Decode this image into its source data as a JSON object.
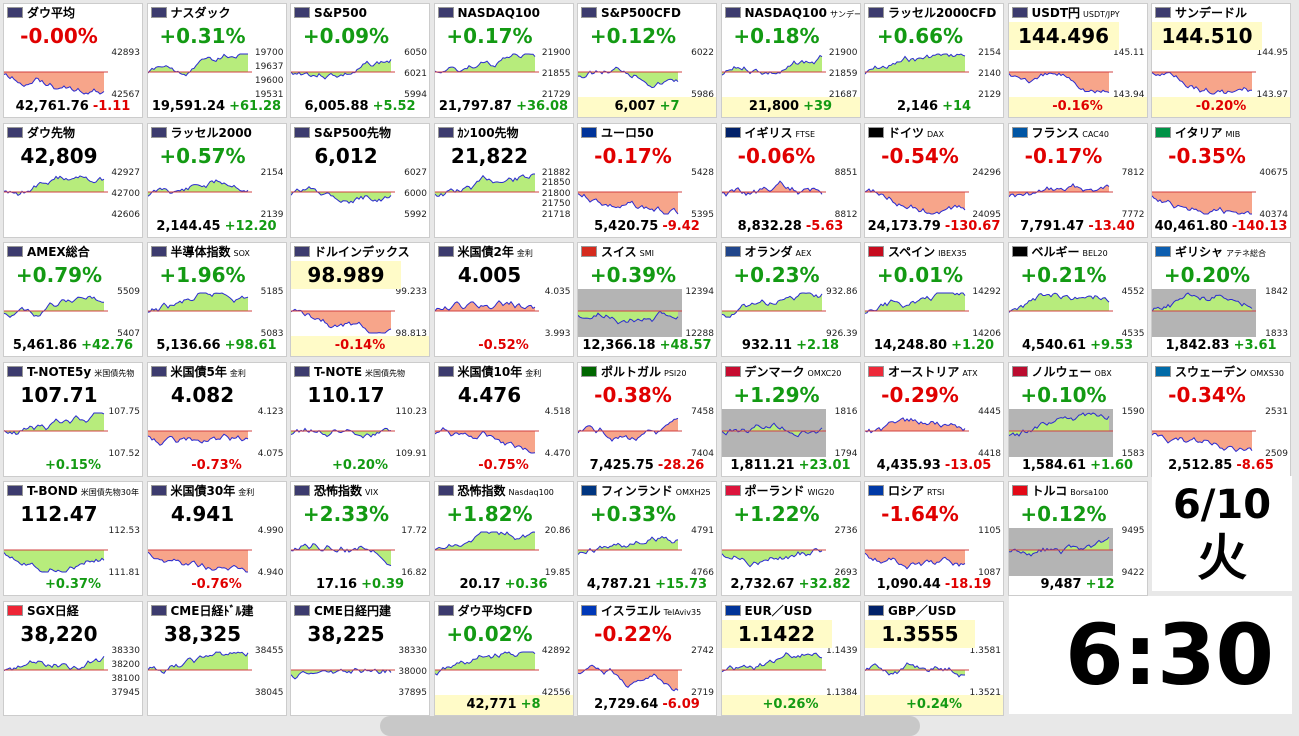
{
  "tiles": [
    {
      "name": "ダウ平均",
      "pct": "-0.00%",
      "price": "42,761.76",
      "change": "-1.11",
      "labels": [
        "42893",
        "42567"
      ]
    },
    {
      "name": "ナスダック",
      "pct": "+0.31%",
      "price": "19,591.24",
      "change": "+61.28",
      "labels": [
        "19700",
        "19637",
        "19600",
        "19531"
      ]
    },
    {
      "name": "S&P500",
      "pct": "+0.09%",
      "price": "6,005.88",
      "change": "+5.52",
      "labels": [
        "6050",
        "6021",
        "5994"
      ]
    },
    {
      "name": "NASDAQ100",
      "pct": "+0.17%",
      "price": "21,797.87",
      "change": "+36.08",
      "labels": [
        "21900",
        "21855",
        "21729"
      ]
    },
    {
      "name": "S&P500CFD",
      "pct": "+0.12%",
      "price": "6,007",
      "change": "+7",
      "labels": [
        "6022",
        "5986"
      ],
      "highlight": "#fffbc8"
    },
    {
      "name": "NASDAQ100",
      "sub": "サンデー",
      "pct": "+0.18%",
      "price": "21,800",
      "change": "+39",
      "labels": [
        "21900",
        "21859",
        "21687"
      ],
      "highlight": "#fffbc8"
    },
    {
      "name": "ラッセル2000CFD",
      "pct": "+0.66%",
      "price": "2,146",
      "change": "+14",
      "labels": [
        "2154",
        "2140",
        "2129"
      ]
    },
    {
      "name": "USDT円",
      "sub": "USDT/JPY",
      "price": "144.496",
      "pct": "-0.16%",
      "labels": [
        "145.11",
        "143.94"
      ],
      "highlight": "#fffbc8"
    },
    {
      "name": "サンデードル",
      "price": "144.510",
      "pct": "-0.20%",
      "labels": [
        "144.95",
        "143.97"
      ],
      "highlight": "#fffbc8"
    },
    {
      "name": "ダウ先物",
      "price": "42,809",
      "labels": [
        "42927",
        "42700",
        "42606"
      ]
    },
    {
      "name": "ラッセル2000",
      "pct": "+0.57%",
      "price": "2,144.45",
      "change": "+12.20",
      "labels": [
        "2154",
        "2139"
      ]
    },
    {
      "name": "S&P500先物",
      "price": "6,012",
      "labels": [
        "6027",
        "6000",
        "5992"
      ]
    },
    {
      "name": "ｶﾝ100先物",
      "price": "21,822",
      "labels": [
        "21882",
        "21850",
        "21800",
        "21750",
        "21718"
      ]
    },
    {
      "name": "ユーロ50",
      "pct": "-0.17%",
      "price": "5,420.75",
      "change": "-9.42",
      "labels": [
        "5428",
        "5395"
      ]
    },
    {
      "name": "イギリス",
      "sub": "FTSE",
      "pct": "-0.06%",
      "price": "8,832.28",
      "change": "-5.63",
      "labels": [
        "8851",
        "8812"
      ]
    },
    {
      "name": "ドイツ",
      "sub": "DAX",
      "pct": "-0.54%",
      "price": "24,173.79",
      "change": "-130.67",
      "labels": [
        "24296",
        "24095"
      ]
    },
    {
      "name": "フランス",
      "sub": "CAC40",
      "pct": "-0.17%",
      "price": "7,791.47",
      "change": "-13.40",
      "labels": [
        "7812",
        "7772"
      ]
    },
    {
      "name": "イタリア",
      "sub": "MIB",
      "pct": "-0.35%",
      "price": "40,461.80",
      "change": "-140.13",
      "labels": [
        "40675",
        "40374"
      ]
    },
    {
      "name": "AMEX総合",
      "pct": "+0.79%",
      "price": "5,461.86",
      "change": "+42.76",
      "labels": [
        "5509",
        "5407"
      ]
    },
    {
      "name": "半導体指数",
      "sub": "SOX",
      "pct": "+1.96%",
      "price": "5,136.66",
      "change": "+98.61",
      "labels": [
        "5185",
        "5083"
      ]
    },
    {
      "name": "ドルインデックス",
      "price": "98.989",
      "pct": "-0.14%",
      "labels": [
        "99.233",
        "98.813"
      ],
      "highlight": "#fffbc8"
    },
    {
      "name": "米国債2年",
      "sub": "金利",
      "price": "4.005",
      "pct": "-0.52%",
      "labels": [
        "4.035",
        "3.993"
      ]
    },
    {
      "name": "スイス",
      "sub": "SMI",
      "pct": "+0.39%",
      "price": "12,366.18",
      "change": "+48.57",
      "labels": [
        "12394",
        "12288"
      ],
      "chart_bg": "#b4b4b4"
    },
    {
      "name": "オランダ",
      "sub": "AEX",
      "pct": "+0.23%",
      "price": "932.11",
      "change": "+2.18",
      "labels": [
        "932.86",
        "926.39"
      ]
    },
    {
      "name": "スペイン",
      "sub": "IBEX35",
      "pct": "+0.01%",
      "price": "14,248.80",
      "change": "+1.20",
      "labels": [
        "14292",
        "14206"
      ]
    },
    {
      "name": "ベルギー",
      "sub": "BEL20",
      "pct": "+0.21%",
      "price": "4,540.61",
      "change": "+9.53",
      "labels": [
        "4552",
        "4535"
      ]
    },
    {
      "name": "ギリシャ",
      "sub": "アテネ総合",
      "pct": "+0.20%",
      "price": "1,842.83",
      "change": "+3.61",
      "labels": [
        "1842",
        "1833"
      ],
      "chart_bg": "#b4b4b4"
    },
    {
      "name": "T-NOTE5y",
      "sub": "米国債先物",
      "price": "107.71",
      "pct": "+0.15%",
      "labels": [
        "107.75",
        "107.52"
      ]
    },
    {
      "name": "米国債5年",
      "sub": "金利",
      "price": "4.082",
      "pct": "-0.73%",
      "labels": [
        "4.123",
        "4.075"
      ]
    },
    {
      "name": "T-NOTE",
      "sub": "米国債先物",
      "price": "110.17",
      "pct": "+0.20%",
      "labels": [
        "110.23",
        "109.91"
      ]
    },
    {
      "name": "米国債10年",
      "sub": "金利",
      "price": "4.476",
      "pct": "-0.75%",
      "labels": [
        "4.518",
        "4.470"
      ]
    },
    {
      "name": "ポルトガル",
      "sub": "PSI20",
      "pct": "-0.38%",
      "price": "7,425.75",
      "change": "-28.26",
      "labels": [
        "7458",
        "7404"
      ]
    },
    {
      "name": "デンマーク",
      "sub": "OMXC20",
      "pct": "+1.29%",
      "price": "1,811.21",
      "change": "+23.01",
      "labels": [
        "1816",
        "1794"
      ],
      "chart_bg": "#b4b4b4"
    },
    {
      "name": "オーストリア",
      "sub": "ATX",
      "pct": "-0.29%",
      "price": "4,435.93",
      "change": "-13.05",
      "labels": [
        "4445",
        "4418"
      ]
    },
    {
      "name": "ノルウェー",
      "sub": "OBX",
      "pct": "+0.10%",
      "price": "1,584.61",
      "change": "+1.60",
      "labels": [
        "1590",
        "1583"
      ],
      "chart_bg": "#b4b4b4"
    },
    {
      "name": "スウェーデン",
      "sub": "OMXS30",
      "pct": "-0.34%",
      "price": "2,512.85",
      "change": "-8.65",
      "labels": [
        "2531",
        "2509"
      ]
    },
    {
      "name": "T-BOND",
      "sub": "米国債先物30年",
      "price": "112.47",
      "pct": "+0.37%",
      "labels": [
        "112.53",
        "111.81"
      ]
    },
    {
      "name": "米国債30年",
      "sub": "金利",
      "price": "4.941",
      "pct": "-0.76%",
      "labels": [
        "4.990",
        "4.940"
      ]
    },
    {
      "name": "恐怖指数",
      "sub": "VIX",
      "pct": "+2.33%",
      "price": "17.16",
      "change": "+0.39",
      "labels": [
        "17.72",
        "16.82"
      ]
    },
    {
      "name": "恐怖指数",
      "sub": "Nasdaq100",
      "pct": "+1.82%",
      "price": "20.17",
      "change": "+0.36",
      "labels": [
        "20.86",
        "19.85"
      ]
    },
    {
      "name": "フィンランド",
      "sub": "OMXH25",
      "pct": "+0.33%",
      "price": "4,787.21",
      "change": "+15.73",
      "labels": [
        "4791",
        "4766"
      ]
    },
    {
      "name": "ポーランド",
      "sub": "WIG20",
      "pct": "+1.22%",
      "price": "2,732.67",
      "change": "+32.82",
      "labels": [
        "2736",
        "2693"
      ]
    },
    {
      "name": "ロシア",
      "sub": "RTSI",
      "pct": "-1.64%",
      "price": "1,090.44",
      "change": "-18.19",
      "labels": [
        "1105",
        "1087"
      ]
    },
    {
      "name": "トルコ",
      "sub": "Borsa100",
      "pct": "+0.12%",
      "price": "9,487",
      "change": "+12",
      "labels": [
        "9495",
        "9422"
      ],
      "chart_bg": "#b4b4b4"
    },
    {
      "name": "SGX日経",
      "price": "38,220",
      "labels": [
        "38330",
        "38200",
        "38100",
        "37945"
      ]
    },
    {
      "name": "CME日経ﾄﾞﾙ建",
      "price": "38,325",
      "labels": [
        "38455",
        "38045"
      ]
    },
    {
      "name": "CME日経円建",
      "price": "38,225",
      "labels": [
        "38330",
        "38000",
        "37895"
      ]
    },
    {
      "name": "ダウ平均CFD",
      "pct": "+0.02%",
      "price": "42,771",
      "change": "+8",
      "labels": [
        "42892",
        "42556"
      ],
      "highlight": "#fffbc8"
    },
    {
      "name": "イスラエル",
      "sub": "TelAviv35",
      "pct": "-0.22%",
      "price": "2,729.64",
      "change": "-6.09",
      "labels": [
        "2742",
        "2719"
      ]
    },
    {
      "name": "EUR／USD",
      "price": "1.1422",
      "pct": "+0.26%",
      "labels": [
        "1.1439",
        "1.1384"
      ],
      "highlight": "#fffbc8"
    },
    {
      "name": "GBP／USD",
      "price": "1.3555",
      "pct": "+0.24%",
      "labels": [
        "1.3581",
        "1.3521"
      ],
      "highlight": "#fffbc8"
    }
  ],
  "date": {
    "day": "6/10",
    "weekday": "火"
  },
  "time": "6:30"
}
